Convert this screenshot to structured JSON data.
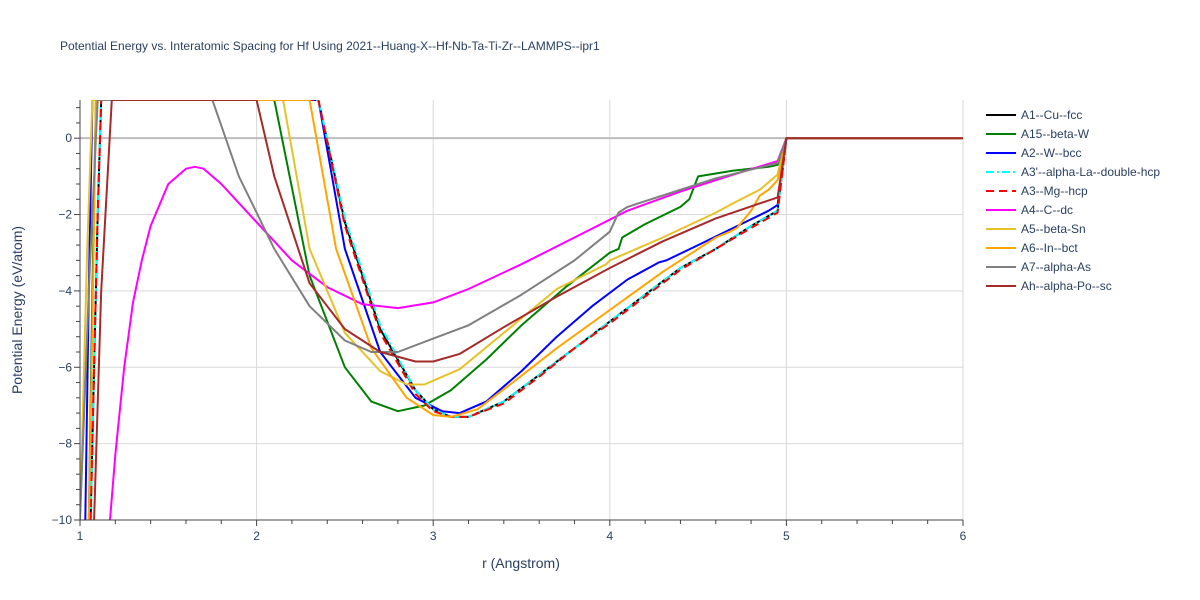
{
  "chart_data": {
    "type": "line",
    "title": "Potential Energy vs. Interatomic Spacing for Hf Using 2021--Huang-X--Hf-Nb-Ta-Ti-Zr--LAMMPS--ipr1",
    "xlabel": "r (Angstrom)",
    "ylabel": "Potential Energy (eV/atom)",
    "xlim": [
      1,
      6
    ],
    "ylim": [
      -10,
      1
    ],
    "xticks": [
      1,
      2,
      3,
      4,
      5,
      6
    ],
    "yticks": [
      -10,
      -8,
      -6,
      -4,
      -2,
      0
    ],
    "grid": true,
    "legend_position": "right",
    "series": [
      {
        "name": "A1--Cu--fcc",
        "color": "#000000",
        "dash": "solid",
        "x": [
          1.06,
          1.08,
          1.1,
          1.12,
          2.35,
          2.5,
          2.7,
          2.9,
          3.0,
          3.1,
          3.2,
          3.4,
          3.6,
          3.8,
          4.0,
          4.2,
          4.4,
          4.6,
          4.8,
          4.95,
          5.0,
          6.0
        ],
        "y": [
          -10,
          -6,
          -2,
          1,
          1,
          -2.2,
          -5.0,
          -6.6,
          -7.1,
          -7.3,
          -7.3,
          -6.9,
          -6.2,
          -5.5,
          -4.8,
          -4.1,
          -3.4,
          -2.9,
          -2.3,
          -1.9,
          0,
          0
        ]
      },
      {
        "name": "A15--beta-W",
        "color": "#008000",
        "dash": "solid",
        "x": [
          1.05,
          1.07,
          1.09,
          2.1,
          2.3,
          2.5,
          2.65,
          2.8,
          2.95,
          3.1,
          3.3,
          3.5,
          3.75,
          4.0,
          4.05,
          4.07,
          4.2,
          4.4,
          4.45,
          4.5,
          4.7,
          4.9,
          4.95,
          5.0,
          6.0
        ],
        "y": [
          -10,
          -4,
          1,
          1,
          -3.6,
          -6.0,
          -6.9,
          -7.15,
          -7.0,
          -6.6,
          -5.8,
          -4.9,
          -3.9,
          -3.0,
          -2.9,
          -2.6,
          -2.25,
          -1.8,
          -1.6,
          -1.0,
          -0.85,
          -0.75,
          -0.7,
          0,
          0
        ]
      },
      {
        "name": "A2--W--bcc",
        "color": "#0000ff",
        "dash": "solid",
        "x": [
          1.03,
          1.05,
          1.07,
          2.35,
          2.5,
          2.7,
          2.9,
          3.05,
          3.15,
          3.3,
          3.5,
          3.7,
          3.9,
          4.1,
          4.28,
          4.32,
          4.5,
          4.7,
          4.9,
          4.95,
          5.0,
          6.0
        ],
        "y": [
          -10,
          -4,
          1,
          1,
          -2.9,
          -5.6,
          -6.8,
          -7.15,
          -7.2,
          -6.9,
          -6.1,
          -5.2,
          -4.4,
          -3.7,
          -3.25,
          -3.2,
          -2.8,
          -2.35,
          -1.9,
          -1.75,
          0,
          0
        ]
      },
      {
        "name": "A3'--alpha-La--double-hcp",
        "color": "#00ffff",
        "dash": "dashdot",
        "x": [
          1.06,
          1.08,
          1.1,
          1.12,
          2.35,
          2.5,
          2.7,
          2.9,
          3.0,
          3.1,
          3.2,
          3.4,
          3.6,
          3.8,
          4.0,
          4.2,
          4.4,
          4.6,
          4.8,
          4.95,
          5.0,
          6.0
        ],
        "y": [
          -10,
          -6,
          -2,
          1,
          1,
          -2.1,
          -4.9,
          -6.6,
          -7.1,
          -7.3,
          -7.3,
          -6.9,
          -6.2,
          -5.5,
          -4.8,
          -4.1,
          -3.4,
          -2.9,
          -2.3,
          -1.9,
          0,
          0
        ]
      },
      {
        "name": "A3--Mg--hcp",
        "color": "#ff0000",
        "dash": "dash",
        "x": [
          1.06,
          1.08,
          1.1,
          1.12,
          2.35,
          2.5,
          2.7,
          2.9,
          3.0,
          3.1,
          3.2,
          3.4,
          3.6,
          3.8,
          4.0,
          4.2,
          4.4,
          4.6,
          4.8,
          4.95,
          5.0,
          6.0
        ],
        "y": [
          -10,
          -6,
          -2,
          1,
          1,
          -2.3,
          -5.1,
          -6.7,
          -7.15,
          -7.3,
          -7.3,
          -6.95,
          -6.25,
          -5.5,
          -4.85,
          -4.15,
          -3.45,
          -2.9,
          -2.35,
          -1.95,
          0,
          0
        ]
      },
      {
        "name": "A4--C--dc",
        "color": "#ff00ff",
        "dash": "solid",
        "x": [
          1.17,
          1.2,
          1.25,
          1.3,
          1.35,
          1.4,
          1.5,
          1.6,
          1.65,
          1.7,
          1.8,
          1.9,
          2.0,
          2.2,
          2.4,
          2.6,
          2.8,
          3.0,
          3.2,
          3.5,
          3.8,
          4.1,
          4.4,
          4.7,
          4.95,
          5.0,
          6.0
        ],
        "y": [
          -10,
          -8.3,
          -6.0,
          -4.3,
          -3.2,
          -2.3,
          -1.2,
          -0.8,
          -0.75,
          -0.8,
          -1.2,
          -1.7,
          -2.2,
          -3.2,
          -3.9,
          -4.35,
          -4.45,
          -4.3,
          -3.95,
          -3.3,
          -2.6,
          -1.9,
          -1.4,
          -0.95,
          -0.6,
          0,
          0
        ]
      },
      {
        "name": "A5--beta-Sn",
        "color": "#e6c229",
        "dash": "solid",
        "x": [
          1.0,
          1.04,
          1.07,
          2.15,
          2.3,
          2.5,
          2.7,
          2.85,
          2.95,
          3.15,
          3.4,
          3.7,
          3.98,
          4.0,
          4.3,
          4.6,
          4.7,
          4.85,
          4.95,
          5.0,
          6.0
        ],
        "y": [
          -10,
          -3,
          1,
          1,
          -2.9,
          -5.1,
          -6.1,
          -6.45,
          -6.45,
          -6.05,
          -5.1,
          -3.95,
          -3.3,
          -3.2,
          -2.6,
          -1.95,
          -1.7,
          -1.35,
          -0.95,
          0,
          0
        ]
      },
      {
        "name": "A6--In--bct",
        "color": "#ffa500",
        "dash": "solid",
        "x": [
          1.05,
          1.07,
          1.09,
          2.3,
          2.45,
          2.65,
          2.85,
          3.0,
          3.1,
          3.25,
          3.45,
          3.7,
          4.0,
          4.3,
          4.6,
          4.68,
          4.72,
          4.8,
          4.85,
          4.9,
          4.95,
          5.0,
          6.0
        ],
        "y": [
          -10,
          -5,
          1,
          1,
          -2.9,
          -5.5,
          -6.8,
          -7.25,
          -7.3,
          -7.1,
          -6.4,
          -5.5,
          -4.5,
          -3.5,
          -2.6,
          -2.45,
          -2.35,
          -1.9,
          -1.5,
          -1.35,
          -1.1,
          0,
          0
        ]
      },
      {
        "name": "A7--alpha-As",
        "color": "#808080",
        "dash": "solid",
        "x": [
          1.0,
          1.05,
          1.1,
          1.75,
          1.9,
          2.1,
          2.3,
          2.5,
          2.65,
          2.8,
          3.0,
          3.2,
          3.5,
          3.8,
          4.0,
          4.05,
          4.1,
          4.3,
          4.6,
          4.95,
          5.0,
          6.0
        ],
        "y": [
          -10,
          -4,
          1,
          1,
          -1.0,
          -2.9,
          -4.4,
          -5.3,
          -5.6,
          -5.6,
          -5.25,
          -4.9,
          -4.1,
          -3.2,
          -2.45,
          -1.95,
          -1.8,
          -1.5,
          -1.05,
          -0.65,
          0,
          0
        ]
      },
      {
        "name": "Ah--alpha-Po--sc",
        "color": "#a52a2a",
        "dash": "solid",
        "x": [
          1.08,
          1.12,
          1.18,
          2.0,
          2.1,
          2.3,
          2.5,
          2.7,
          2.9,
          3.0,
          3.15,
          3.4,
          3.7,
          4.0,
          4.3,
          4.6,
          4.95,
          5.0,
          6.0
        ],
        "y": [
          -10,
          -4,
          1,
          1,
          -1.0,
          -3.8,
          -5.0,
          -5.6,
          -5.85,
          -5.85,
          -5.65,
          -4.95,
          -4.15,
          -3.4,
          -2.7,
          -2.1,
          -1.55,
          0,
          0
        ]
      }
    ]
  }
}
